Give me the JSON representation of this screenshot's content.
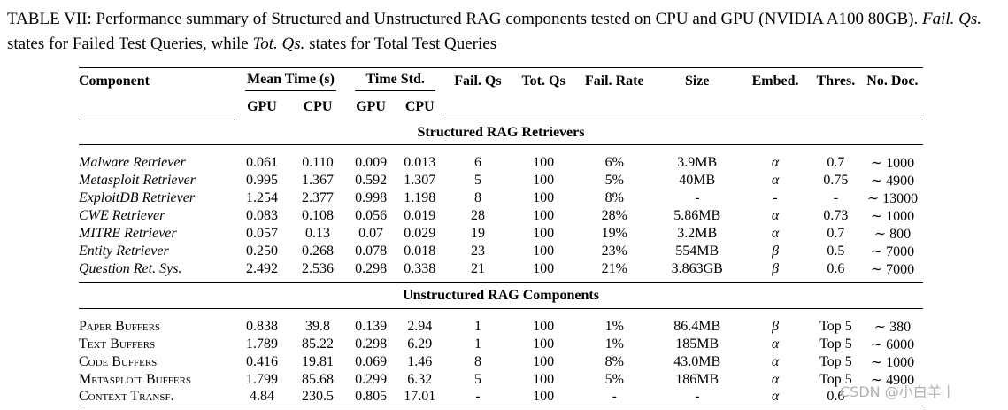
{
  "caption": {
    "lead": "TABLE VII: Performance summary of Structured and Unstructured RAG components tested on CPU and GPU (NVIDIA A100 80GB). ",
    "fail_term": "Fail. Qs.",
    "mid": " states for Failed Test Queries, while ",
    "tot_term": "Tot. Qs.",
    "tail": " states for Total Test Queries"
  },
  "headers": {
    "component": "Component",
    "mean_time": "Mean Time (s)",
    "time_std": "Time Std.",
    "fail_qs": "Fail. Qs",
    "tot_qs": "Tot. Qs",
    "fail_rate": "Fail. Rate",
    "size": "Size",
    "embed": "Embed.",
    "thres": "Thres.",
    "no_doc": "No. Doc.",
    "gpu": "GPU",
    "cpu": "CPU"
  },
  "sections": [
    {
      "title": "Structured RAG Retrievers",
      "rows": [
        [
          "Malware Retriever",
          "0.061",
          "0.110",
          "0.009",
          "0.013",
          "6",
          "100",
          "6%",
          "3.9MB",
          "α",
          "0.7",
          "∼ 1000"
        ],
        [
          "Metasploit Retriever",
          "0.995",
          "1.367",
          "0.592",
          "1.307",
          "5",
          "100",
          "5%",
          "40MB",
          "α",
          "0.75",
          "∼ 4900"
        ],
        [
          "ExploitDB Retriever",
          "1.254",
          "2.377",
          "0.998",
          "1.198",
          "8",
          "100",
          "8%",
          "-",
          "-",
          "-",
          "∼ 13000"
        ],
        [
          "CWE Retriever",
          "0.083",
          "0.108",
          "0.056",
          "0.019",
          "28",
          "100",
          "28%",
          "5.86MB",
          "α",
          "0.73",
          "∼ 1000"
        ],
        [
          "MITRE Retriever",
          "0.057",
          "0.13",
          "0.07",
          "0.029",
          "19",
          "100",
          "19%",
          "3.2MB",
          "α",
          "0.7",
          "∼ 800"
        ],
        [
          "Entity Retriever",
          "0.250",
          "0.268",
          "0.078",
          "0.018",
          "23",
          "100",
          "23%",
          "554MB",
          "β",
          "0.5",
          "∼ 7000"
        ],
        [
          "Question Ret. Sys.",
          "2.492",
          "2.536",
          "0.298",
          "0.338",
          "21",
          "100",
          "21%",
          "3.863GB",
          "β",
          "0.6",
          "∼ 7000"
        ]
      ]
    },
    {
      "title": "Unstructured RAG Components",
      "rows": [
        [
          "Paper Buffers",
          "0.838",
          "39.8",
          "0.139",
          "2.94",
          "1",
          "100",
          "1%",
          "86.4MB",
          "β",
          "Top 5",
          "∼ 380"
        ],
        [
          "Text Buffers",
          "1.789",
          "85.22",
          "0.298",
          "6.29",
          "1",
          "100",
          "1%",
          "185MB",
          "α",
          "Top 5",
          "∼ 6000"
        ],
        [
          "Code Buffers",
          "0.416",
          "19.81",
          "0.069",
          "1.46",
          "8",
          "100",
          "8%",
          "43.0MB",
          "α",
          "Top 5",
          "∼ 1000"
        ],
        [
          "Metasploit Buffers",
          "1.799",
          "85.68",
          "0.299",
          "6.32",
          "5",
          "100",
          "5%",
          "186MB",
          "α",
          "Top 5",
          "∼ 4900"
        ],
        [
          "Context Transf.",
          "4.84",
          "230.5",
          "0.805",
          "17.01",
          "-",
          "100",
          "-",
          "-",
          "α",
          "0.6",
          ""
        ]
      ]
    }
  ],
  "watermark": "CSDN @小白羊丨"
}
